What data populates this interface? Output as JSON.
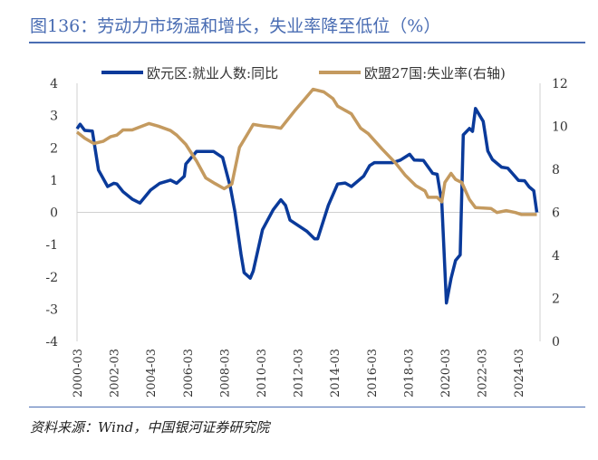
{
  "title": "图136：劳动力市场温和增长，失业率降至低位（%）",
  "source": "资料来源：Wind，中国银河证券研究院",
  "chart_data": {
    "type": "line",
    "legend_position": "top",
    "grid": false,
    "x_ticks": [
      "2000-03",
      "2002-03",
      "2004-03",
      "2006-03",
      "2008-03",
      "2010-03",
      "2012-03",
      "2014-03",
      "2016-03",
      "2018-03",
      "2020-03",
      "2022-03",
      "2024-03"
    ],
    "y_left": {
      "range": [
        -4,
        4
      ],
      "ticks": [
        -4,
        -3,
        -2,
        -1,
        0,
        1,
        2,
        3,
        4
      ]
    },
    "y_right": {
      "range": [
        0,
        12
      ],
      "ticks": [
        0,
        2,
        4,
        6,
        8,
        10,
        12
      ]
    },
    "series": [
      {
        "name": "欧元区:就业人数:同比",
        "axis": "left",
        "color": "#0a3a9a",
        "x": [
          "2000-03",
          "2000-05",
          "2000-08",
          "2001-01",
          "2001-05",
          "2001-11",
          "2002-03",
          "2002-05",
          "2002-09",
          "2003-03",
          "2003-08",
          "2004-03",
          "2004-09",
          "2005-04",
          "2005-08",
          "2006-01",
          "2006-02",
          "2006-09",
          "2007-08",
          "2008-02",
          "2008-07",
          "2008-10",
          "2009-02",
          "2009-04",
          "2009-08",
          "2009-10",
          "2010-04",
          "2010-11",
          "2011-04",
          "2011-07",
          "2011-10",
          "2012-09",
          "2013-02",
          "2013-04",
          "2013-11",
          "2014-05",
          "2014-10",
          "2015-02",
          "2015-10",
          "2016-02",
          "2016-05",
          "2017-05",
          "2017-10",
          "2018-04",
          "2018-07",
          "2019-01",
          "2019-07",
          "2019-10",
          "2020-01",
          "2020-04",
          "2020-07",
          "2020-10",
          "2021-01",
          "2021-03",
          "2021-07",
          "2021-09",
          "2021-11",
          "2022-04",
          "2022-07",
          "2022-10",
          "2023-04",
          "2023-08",
          "2023-11",
          "2024-03",
          "2024-07",
          "2024-10",
          "2025-01",
          "2025-03"
        ],
        "values": [
          2.59,
          2.73,
          2.54,
          2.52,
          1.31,
          0.8,
          0.9,
          0.88,
          0.64,
          0.41,
          0.29,
          0.69,
          0.9,
          1.0,
          0.9,
          1.12,
          1.5,
          1.89,
          1.89,
          1.7,
          0.79,
          0.03,
          -1.3,
          -1.87,
          -2.04,
          -1.82,
          -0.54,
          0.08,
          0.39,
          0.22,
          -0.24,
          -0.59,
          -0.82,
          -0.82,
          0.22,
          0.88,
          0.91,
          0.8,
          1.12,
          1.45,
          1.54,
          1.54,
          1.62,
          1.8,
          1.62,
          1.61,
          1.21,
          1.18,
          0.31,
          -2.81,
          -2.05,
          -1.49,
          -1.32,
          2.4,
          2.6,
          2.51,
          3.22,
          2.82,
          1.9,
          1.64,
          1.4,
          1.37,
          1.21,
          0.99,
          0.98,
          0.79,
          0.67,
          0.0
        ]
      },
      {
        "name": "欧盟27国:失业率(右轴)",
        "axis": "right",
        "color": "#c49a5f",
        "x": [
          "2000-03",
          "2000-08",
          "2001-02",
          "2001-08",
          "2002-01",
          "2002-05",
          "2002-09",
          "2003-03",
          "2003-07",
          "2004-02",
          "2004-08",
          "2005-04",
          "2005-08",
          "2006-02",
          "2006-09",
          "2007-03",
          "2007-09",
          "2008-03",
          "2008-08",
          "2009-01",
          "2009-07",
          "2009-10",
          "2010-05",
          "2010-11",
          "2011-04",
          "2012-01",
          "2012-07",
          "2013-01",
          "2013-08",
          "2014-02",
          "2014-05",
          "2015-02",
          "2015-08",
          "2016-01",
          "2016-10",
          "2017-07",
          "2018-01",
          "2018-08",
          "2019-02",
          "2019-04",
          "2019-10",
          "2020-01",
          "2020-03",
          "2020-07",
          "2020-10",
          "2021-02",
          "2021-07",
          "2021-11",
          "2022-09",
          "2023-01",
          "2023-07",
          "2024-01",
          "2024-05",
          "2025-03"
        ],
        "values": [
          9.73,
          9.45,
          9.2,
          9.3,
          9.52,
          9.59,
          9.83,
          9.83,
          9.94,
          10.13,
          10.01,
          9.8,
          9.59,
          9.16,
          8.38,
          7.6,
          7.34,
          7.1,
          7.32,
          9.02,
          9.73,
          10.09,
          10.01,
          9.97,
          9.91,
          10.72,
          11.22,
          11.72,
          11.6,
          11.29,
          10.94,
          10.58,
          9.91,
          9.66,
          8.95,
          8.28,
          7.74,
          7.24,
          7.0,
          6.7,
          6.7,
          6.49,
          7.39,
          7.81,
          7.53,
          7.39,
          6.6,
          6.22,
          6.18,
          5.99,
          6.08,
          5.99,
          5.9,
          5.9
        ]
      }
    ]
  }
}
